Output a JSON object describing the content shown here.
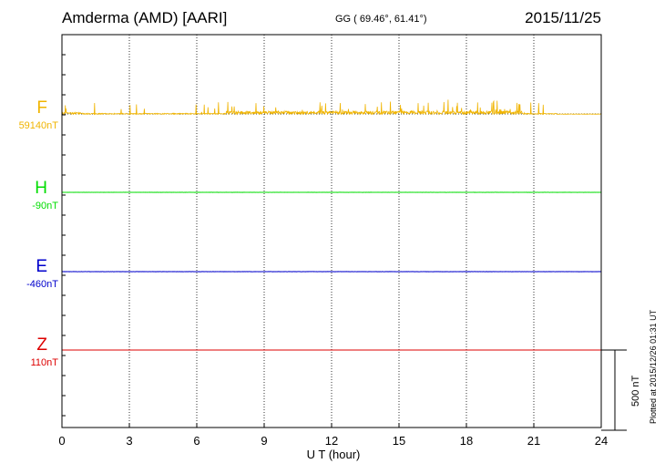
{
  "header": {
    "station": "Amderma (AMD)  [AARI]",
    "coords": "GG ( 69.46°,  61.41°)",
    "date": "2015/11/25"
  },
  "footer": "Plotted at 2015/12/26 01:31 UT",
  "chart_data": {
    "type": "line",
    "xlabel": "U T (hour)",
    "xlim": [
      0,
      24
    ],
    "xticks": [
      "0",
      "3",
      "6",
      "9",
      "12",
      "15",
      "18",
      "21",
      "24"
    ],
    "grid": true,
    "scale_bar": {
      "label": "500 nT",
      "value_nT": 500
    },
    "series": [
      {
        "name": "F",
        "baseline_label": "59140nT",
        "color": "#f0b400",
        "level_nT": 0,
        "noise_nT": 40,
        "spikes": true
      },
      {
        "name": "H",
        "baseline_label": "-90nT",
        "color": "#00dd00",
        "level_nT": 0,
        "noise_nT": 2,
        "spikes": false
      },
      {
        "name": "E",
        "baseline_label": "-460nT",
        "color": "#0000cc",
        "level_nT": 0,
        "noise_nT": 3,
        "spikes": false
      },
      {
        "name": "Z",
        "baseline_label": "110nT",
        "color": "#dd0000",
        "level_nT": 0,
        "noise_nT": 1,
        "spikes": false
      }
    ]
  }
}
